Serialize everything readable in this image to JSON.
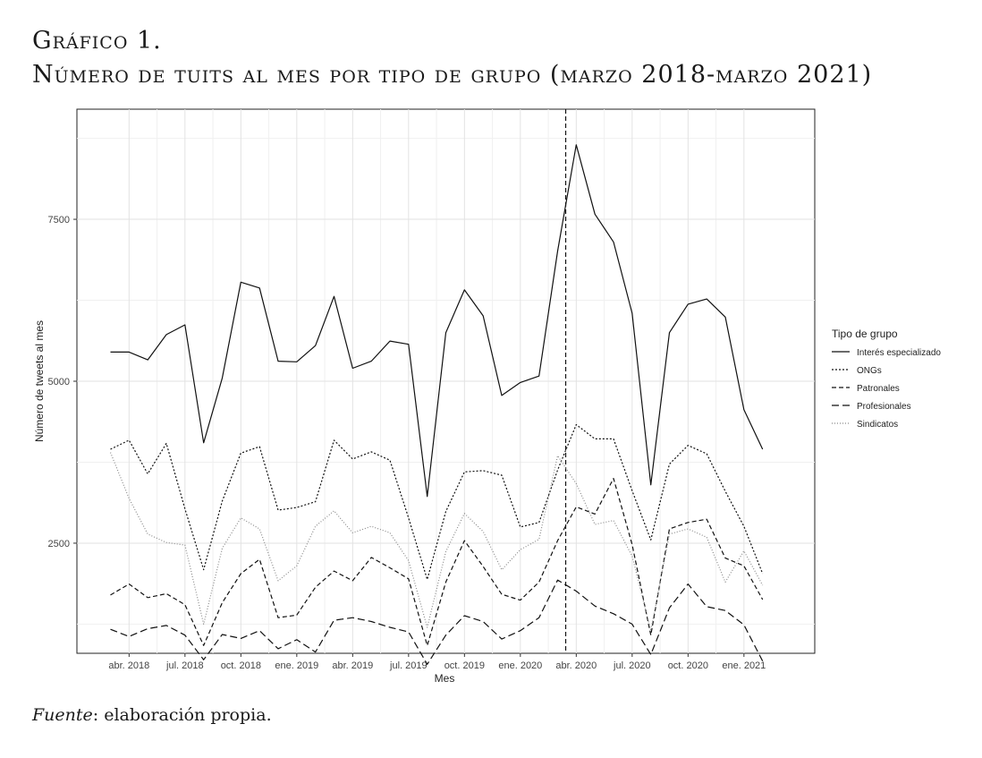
{
  "heading": {
    "line1": "Gráfico 1.",
    "line2": "Número de tuits al mes por tipo de grupo (marzo 2018-marzo 2021)"
  },
  "source": {
    "label": "Fuente",
    "text": ": elaboración propia."
  },
  "chart_data": {
    "type": "line",
    "xlabel": "Mes",
    "ylabel": "Número de tweets al mes",
    "x_start": "2018-03",
    "x_end": "2021-03",
    "x": [
      "2018-03",
      "2018-04",
      "2018-05",
      "2018-06",
      "2018-07",
      "2018-08",
      "2018-09",
      "2018-10",
      "2018-11",
      "2018-12",
      "2019-01",
      "2019-02",
      "2019-03",
      "2019-04",
      "2019-05",
      "2019-06",
      "2019-07",
      "2019-08",
      "2019-09",
      "2019-10",
      "2019-11",
      "2019-12",
      "2020-01",
      "2020-02",
      "2020-03",
      "2020-04",
      "2020-05",
      "2020-06",
      "2020-07",
      "2020-08",
      "2020-09",
      "2020-10",
      "2020-11",
      "2020-12",
      "2021-01",
      "2021-02",
      "2021-03"
    ],
    "x_ticks": [
      {
        "value": "2018-04",
        "label": "abr. 2018"
      },
      {
        "value": "2018-07",
        "label": "jul. 2018"
      },
      {
        "value": "2018-10",
        "label": "oct. 2018"
      },
      {
        "value": "2019-01",
        "label": "ene. 2019"
      },
      {
        "value": "2019-04",
        "label": "abr. 2019"
      },
      {
        "value": "2019-07",
        "label": "jul. 2019"
      },
      {
        "value": "2019-10",
        "label": "oct. 2019"
      },
      {
        "value": "2020-01",
        "label": "ene. 2020"
      },
      {
        "value": "2020-04",
        "label": "abr. 2020"
      },
      {
        "value": "2020-07",
        "label": "jul. 2020"
      },
      {
        "value": "2020-10",
        "label": "oct. 2020"
      },
      {
        "value": "2021-01",
        "label": "ene. 2021"
      }
    ],
    "y_ticks": [
      2500,
      5000,
      7500
    ],
    "ylim": [
      800,
      9200
    ],
    "vline_x": "2020-03-14",
    "grid": true,
    "legend": {
      "title": "Tipo de grupo",
      "position": "right"
    },
    "series": [
      {
        "name": "Interés especializado",
        "dash": "solid",
        "color": "#111111",
        "values": [
          5450,
          5450,
          5330,
          5720,
          5870,
          4050,
          5050,
          6530,
          6440,
          5310,
          5300,
          5550,
          6310,
          5200,
          5310,
          5620,
          5570,
          3220,
          5750,
          6410,
          6010,
          4780,
          4980,
          5080,
          7010,
          8650,
          7580,
          7150,
          6050,
          3400,
          5750,
          6190,
          6270,
          5990,
          4560,
          3950,
          null
        ]
      },
      {
        "name": "ONGs",
        "dash": "dotted",
        "color": "#111111",
        "values": [
          3950,
          4090,
          3570,
          4040,
          3030,
          2090,
          3150,
          3890,
          3990,
          3010,
          3050,
          3140,
          4090,
          3800,
          3910,
          3780,
          2890,
          1940,
          2990,
          3600,
          3620,
          3550,
          2750,
          2820,
          3630,
          4330,
          4110,
          4110,
          3310,
          2550,
          3720,
          4010,
          3880,
          3300,
          2760,
          2030,
          null
        ]
      },
      {
        "name": "Patronales",
        "dash": "dashed",
        "color": "#111111",
        "values": [
          1700,
          1870,
          1660,
          1720,
          1550,
          920,
          1580,
          2030,
          2250,
          1350,
          1390,
          1820,
          2070,
          1920,
          2280,
          2120,
          1950,
          920,
          1900,
          2540,
          2140,
          1710,
          1620,
          1900,
          2540,
          3060,
          2950,
          3500,
          2480,
          1080,
          2720,
          2820,
          2870,
          2270,
          2150,
          1630,
          null
        ]
      },
      {
        "name": "Profesionales",
        "dash": "longdash",
        "color": "#111111",
        "values": [
          1170,
          1060,
          1180,
          1230,
          1080,
          700,
          1090,
          1030,
          1150,
          870,
          1010,
          820,
          1310,
          1350,
          1290,
          1200,
          1130,
          630,
          1080,
          1380,
          1290,
          1020,
          1150,
          1350,
          1930,
          1760,
          1530,
          1410,
          1250,
          780,
          1500,
          1870,
          1520,
          1460,
          1240,
          680,
          null
        ]
      },
      {
        "name": "Sindicatos",
        "dash": "finedot",
        "color": "#8a8a8a",
        "values": [
          3900,
          3190,
          2640,
          2510,
          2470,
          1250,
          2420,
          2890,
          2720,
          1920,
          2150,
          2760,
          3000,
          2660,
          2760,
          2660,
          2230,
          1200,
          2370,
          2960,
          2680,
          2090,
          2400,
          2560,
          3850,
          3420,
          2790,
          2850,
          2300,
          1150,
          2640,
          2720,
          2590,
          1900,
          2380,
          1850,
          null
        ]
      }
    ]
  }
}
